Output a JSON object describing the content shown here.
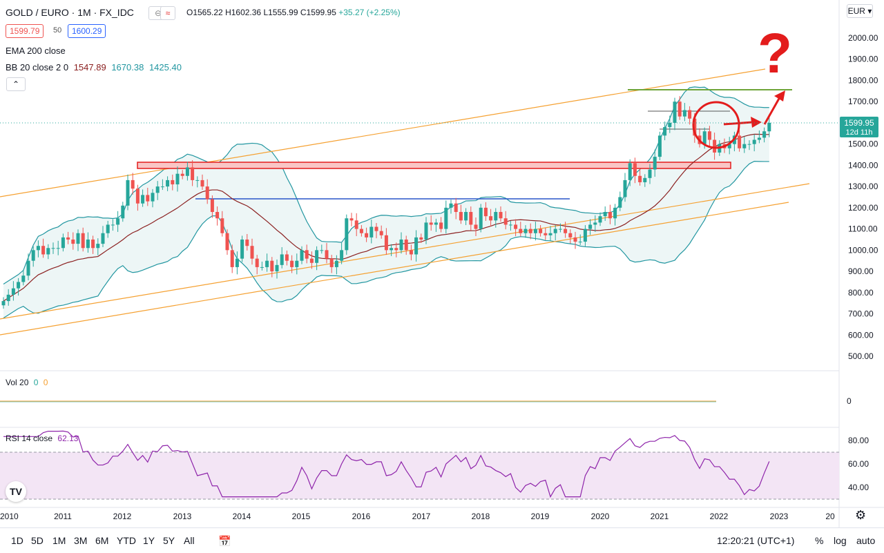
{
  "header": {
    "symbol": "GOLD / EURO · 1M · FX_IDC",
    "ohlc_o": "O1565.22",
    "ohlc_h": "H1602.36",
    "ohlc_l": "L1555.99",
    "ohlc_c": "C1599.95",
    "change": "+35.27 (+2.25%)",
    "bid": "1599.79",
    "spread": "50",
    "ask": "1600.29",
    "ema_label": "EMA 200 close",
    "bb_label": "BB 20 close 2 0",
    "bb_mid": "1547.89",
    "bb_up": "1670.38",
    "bb_low": "1425.40",
    "collapse_icon": "chevron-up-icon",
    "toggle_icons": [
      "eye-off-icon",
      "compare-icon"
    ]
  },
  "currency": "EUR",
  "price_marker": {
    "value": "1599.95",
    "countdown": "12d 11h"
  },
  "annotation": {
    "text": "?"
  },
  "volume": {
    "label": "Vol 20",
    "v1": "0",
    "v2": "0",
    "axis_label": "0"
  },
  "rsi": {
    "label": "RSI 14 close",
    "value": "62.13"
  },
  "bottom": {
    "ranges": [
      "1D",
      "5D",
      "1M",
      "3M",
      "6M",
      "YTD",
      "1Y",
      "5Y",
      "All"
    ],
    "time": "12:20:21 (UTC+1)",
    "percent": "%",
    "log": "log",
    "auto": "auto",
    "calendar_icon": "calendar-icon",
    "settings_icon": "gear-icon",
    "logo": "TradingView logo"
  },
  "colors": {
    "up": "#26a69a",
    "down": "#ef5350",
    "bb": "#2196a0",
    "bbfill": "#e8f4f4",
    "basis": "#8b2020",
    "orange": "#f5a030",
    "green": "#6ea438",
    "red": "#e31c1c",
    "blue": "#2855c8",
    "rsi": "#8e24aa",
    "rsibg": "#f3e5f5"
  },
  "chart_data": {
    "type": "candlestick",
    "price_axis": {
      "ticks": [
        500,
        600,
        700,
        800,
        900,
        1000,
        1100,
        1200,
        1300,
        1400,
        1500,
        1600,
        1700,
        1800,
        1900,
        2000
      ]
    },
    "time_axis": {
      "labels": [
        "2010",
        "2011",
        "2012",
        "2013",
        "2014",
        "2015",
        "2016",
        "2017",
        "2018",
        "2019",
        "2020",
        "2021",
        "2022",
        "2023",
        "20"
      ]
    },
    "candles_close": [
      760,
      790,
      820,
      850,
      880,
      950,
      1000,
      1020,
      980,
      1010,
      1010,
      1010,
      1060,
      1050,
      1030,
      1080,
      1010,
      1050,
      1010,
      1030,
      1080,
      1120,
      1120,
      1150,
      1210,
      1330,
      1290,
      1220,
      1260,
      1230,
      1270,
      1300,
      1300,
      1330,
      1310,
      1360,
      1350,
      1390,
      1330,
      1330,
      1300,
      1240,
      1180,
      1150,
      1080,
      1000,
      920,
      960,
      1050,
      1020,
      960,
      920,
      920,
      950,
      900,
      930,
      980,
      950,
      920,
      950,
      1000,
      960,
      940,
      1000,
      1000,
      960,
      920,
      950,
      1000,
      1150,
      1140,
      1100,
      1080,
      1060,
      1110,
      1090,
      1070,
      1000,
      1010,
      1000,
      1050,
      1000,
      980,
      1060,
      1050,
      1130,
      1120,
      1130,
      1100,
      1200,
      1220,
      1180,
      1140,
      1180,
      1120,
      1100,
      1200,
      1160,
      1140,
      1180,
      1150,
      1120,
      1120,
      1100,
      1080,
      1100,
      1080,
      1100,
      1080,
      1070,
      1080,
      1100,
      1100,
      1080,
      1060,
      1040,
      1040,
      1100,
      1120,
      1130,
      1160,
      1180,
      1150,
      1200,
      1250,
      1330,
      1410,
      1350,
      1320,
      1340,
      1380,
      1440,
      1540,
      1580,
      1600,
      1700,
      1630,
      1660,
      1620,
      1540,
      1500,
      1560,
      1520,
      1460,
      1500,
      1480,
      1500,
      1540,
      1480,
      1500,
      1500,
      1520,
      1530,
      1560,
      1600
    ],
    "moving_average_basis": "BB 20 close 2 0 (basis)",
    "horizontal_levels": [
      1400,
      1240,
      1755,
      1650,
      1570
    ],
    "rsi_axis": {
      "ticks": [
        40,
        60,
        80
      ]
    },
    "rsi_last": 62.13
  }
}
